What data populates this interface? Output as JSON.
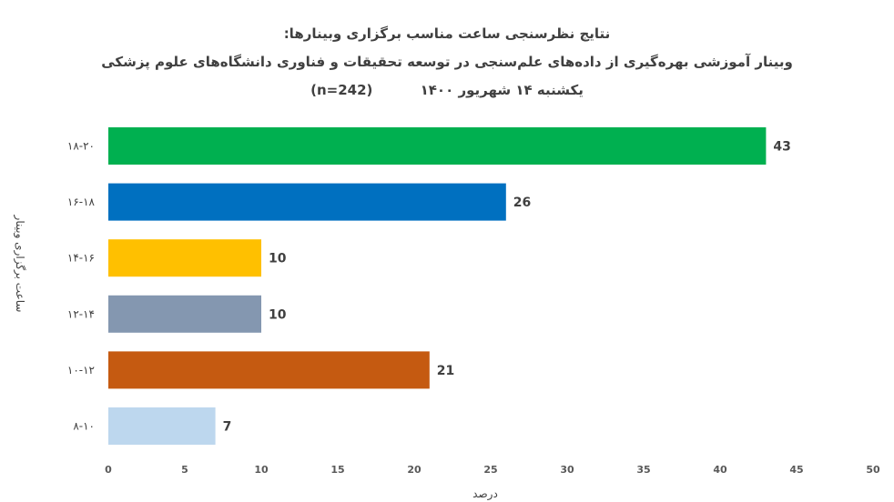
{
  "chart_data": {
    "type": "bar",
    "orientation": "horizontal",
    "title_lines": [
      "نتایج نظرسنجی ساعت مناسب برگزاری وبینارها:",
      "وبینار آموزشی بهره‌گیری از داده‌های علم‌سنجی در توسعه تحقیقات و فناوری دانشگاه‌های علوم پزشکی",
      "یکشنبه ۱۴ شهریور ۱۴۰۰          (n=242)"
    ],
    "ylabel": "ساعت برگزاری وبینار",
    "xlabel": "درصد",
    "categories": [
      "۱۸-۲۰",
      "۱۶-۱۸",
      "۱۴-۱۶",
      "۱۲-۱۴",
      "۱۰-۱۲",
      "۸-۱۰"
    ],
    "values": [
      43,
      26,
      10,
      10,
      21,
      7
    ],
    "colors": [
      "#00B050",
      "#0070C0",
      "#FFC000",
      "#8497B0",
      "#C55A11",
      "#BDD7EE"
    ],
    "xlim": [
      0,
      50
    ],
    "xticks": [
      0,
      5,
      10,
      15,
      20,
      25,
      30,
      35,
      40,
      45,
      50
    ],
    "grid": false,
    "legend": "none",
    "data_labels": true
  }
}
